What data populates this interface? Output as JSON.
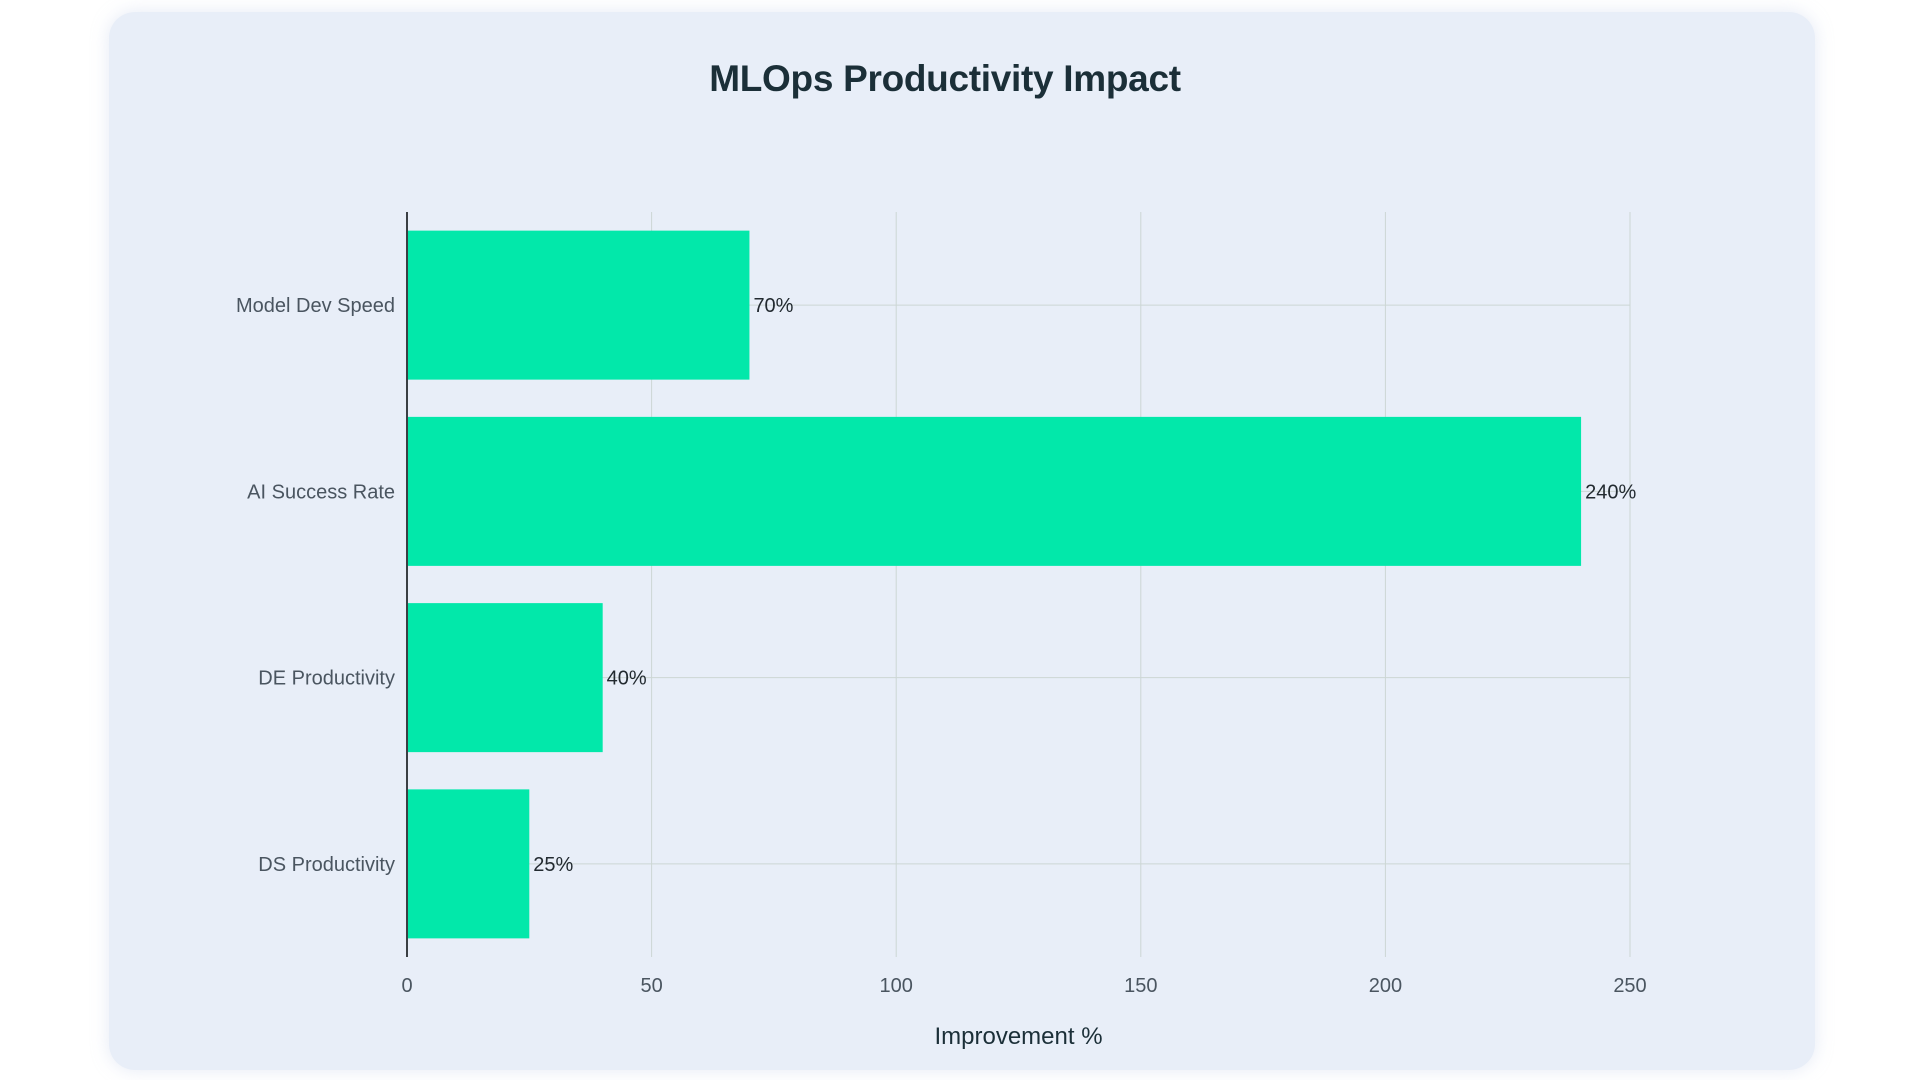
{
  "chart_data": {
    "type": "bar",
    "orientation": "horizontal",
    "title": "MLOps Productivity Impact",
    "xlabel": "Improvement %",
    "ylabel": "",
    "categories": [
      "Model Dev Speed",
      "AI Success Rate",
      "DE Productivity",
      "DS Productivity"
    ],
    "values": [
      70,
      240,
      40,
      25
    ],
    "data_labels": [
      "70%",
      "240%",
      "40%",
      "25%"
    ],
    "xlim": [
      0,
      250
    ],
    "xticks": [
      0,
      50,
      100,
      150,
      200,
      250
    ],
    "grid": true,
    "bar_color": "#02e8aa",
    "grid_color": "#ccd6d4",
    "axis_color": "#3a3f44"
  }
}
